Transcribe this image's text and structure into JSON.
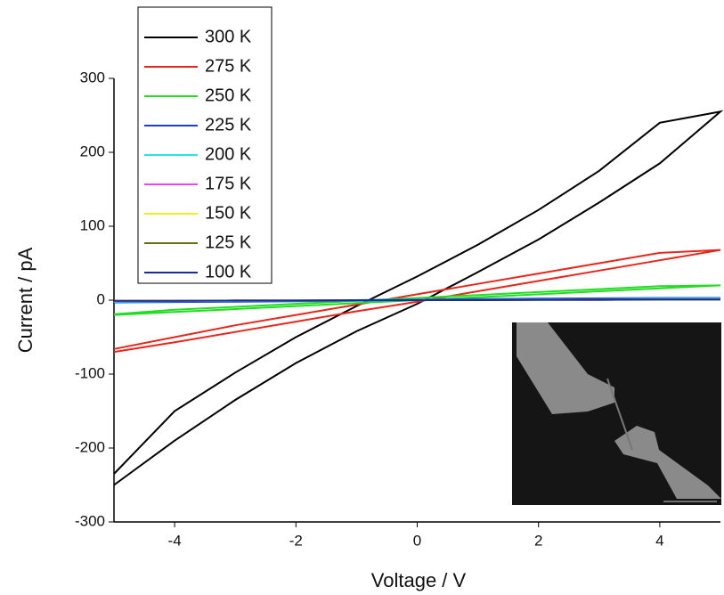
{
  "chart_data": {
    "type": "line",
    "x_label": "Voltage / V",
    "y_label": "Current / pA",
    "x": [
      -5,
      -4,
      -3,
      -2,
      -1,
      0,
      1,
      2,
      3,
      4,
      5,
      4,
      3,
      2,
      1,
      0,
      -1,
      -2,
      -3,
      -4,
      -5
    ],
    "series": [
      {
        "name": "300 K",
        "color": "#000000",
        "values": [
          -250,
          -190,
          -135,
          -85,
          -42,
          -5,
          38,
          82,
          132,
          185,
          255,
          240,
          175,
          122,
          75,
          32,
          -8,
          -50,
          -98,
          -150,
          -235
        ]
      },
      {
        "name": "275 K",
        "color": "#e8261a",
        "values": [
          -70,
          -57,
          -43,
          -29,
          -15,
          -2,
          12,
          26,
          40,
          54,
          68,
          64,
          50,
          36,
          22,
          8,
          -6,
          -20,
          -34,
          -50,
          -66
        ]
      },
      {
        "name": "250 K",
        "color": "#22dd22",
        "values": [
          -20,
          -16,
          -12,
          -8,
          -4,
          0,
          4,
          8,
          12,
          16,
          20,
          19,
          15,
          11,
          7,
          3,
          -1,
          -5,
          -9,
          -13,
          -19
        ]
      },
      {
        "name": "225 K",
        "color": "#1a3fd6",
        "values": [
          -3,
          -2.5,
          -2,
          -1.5,
          -1,
          0,
          1,
          1.5,
          2,
          2.5,
          3,
          3,
          2.5,
          2,
          1.5,
          1,
          0,
          -1,
          -1.5,
          -2,
          -3
        ]
      },
      {
        "name": "200 K",
        "color": "#22e6e6",
        "values": [
          -2,
          -1.5,
          -1,
          -1,
          -0.5,
          0,
          0.5,
          1,
          1,
          1.5,
          2,
          2,
          1.5,
          1,
          1,
          0.5,
          0,
          -0.5,
          -1,
          -1.5,
          -2
        ]
      },
      {
        "name": "175 K",
        "color": "#ee44ee",
        "values": [
          -1,
          -1,
          -0.5,
          -0.5,
          0,
          0,
          0,
          0.5,
          0.5,
          1,
          1,
          1,
          1,
          0.5,
          0.5,
          0,
          0,
          -0.5,
          -0.5,
          -1,
          -1
        ]
      },
      {
        "name": "150 K",
        "color": "#f0f020",
        "values": [
          -1,
          -1,
          -0.5,
          -0.5,
          0,
          0,
          0,
          0.5,
          0.5,
          1,
          1,
          1,
          1,
          0.5,
          0.5,
          0,
          0,
          -0.5,
          -0.5,
          -1,
          -1
        ]
      },
      {
        "name": "125 K",
        "color": "#6b6b10",
        "values": [
          -1,
          -1,
          -0.5,
          -0.5,
          0,
          0,
          0,
          0.5,
          0.5,
          1,
          1,
          1,
          1,
          0.5,
          0.5,
          0,
          0,
          -0.5,
          -0.5,
          -1,
          -1
        ]
      },
      {
        "name": "100 K",
        "color": "#1a2a9a",
        "values": [
          -1,
          -1,
          -0.5,
          -0.5,
          0,
          0,
          0,
          0.5,
          0.5,
          1,
          1,
          1,
          1,
          0.5,
          0.5,
          0,
          0,
          -0.5,
          -0.5,
          -1,
          -1
        ]
      }
    ],
    "xlim": [
      -5,
      5
    ],
    "xticks": [
      -4,
      -2,
      0,
      2,
      4
    ],
    "ylim": [
      -300,
      300
    ],
    "yticks": [
      -300,
      -200,
      -100,
      0,
      100,
      200,
      300
    ],
    "legend": "upper-left"
  }
}
